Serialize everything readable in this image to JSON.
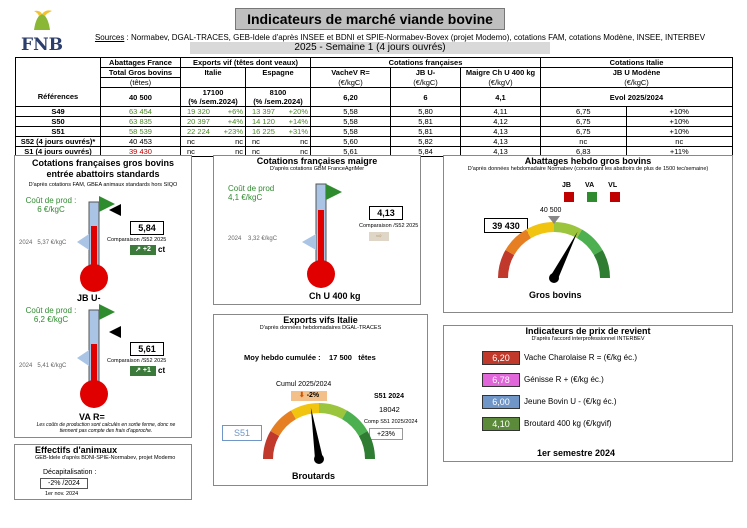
{
  "logo": {
    "text": "FNB"
  },
  "header": {
    "title": "Indicateurs de marché viande bovine",
    "sources_label": "Sources",
    "sources_text": " : Normabev, DGAL-TRACES, GEB-Idele d'après INSEE et BDNI et SPIE-Normabev-Bovex (projet Modemo), cotations FAM, cotations Modène, INSEE, INTERBEV",
    "week": "2025 - Semaine 1 (4 jours ouvrés)"
  },
  "table": {
    "h1": [
      "Abattages France",
      "Exports vif (têtes dont veaux)",
      "Cotations françaises",
      "Cotations Italie"
    ],
    "h2": [
      "Total Gros bovins",
      "Italie",
      "Espagne",
      "VacheV R=",
      "JB U-",
      "Maigre Ch U 400 kg",
      "JB U Modène"
    ],
    "h3": [
      "(têtes)",
      "(€/kgC)",
      "(€/kgC)",
      "(€/kgV)",
      "(€/kgC)"
    ],
    "ref_label": "Références",
    "ref": [
      "40 500",
      "17100",
      "(% /sem.2024)",
      "8100",
      "(% /sem.2024)",
      "6,20",
      "6",
      "4,1",
      "Evol 2025/2024"
    ],
    "rows": [
      {
        "label": "S49",
        "ab": "63 454",
        "it": "19 320",
        "itp": "+6%",
        "es": "13 397",
        "esp": "+20%",
        "vache": "5,58",
        "jb": "5,80",
        "maigre": "4,11",
        "mod": "6,75",
        "modp": "+10%"
      },
      {
        "label": "S50",
        "ab": "63 835",
        "it": "20 397",
        "itp": "+4%",
        "es": "14 120",
        "esp": "+14%",
        "vache": "5,58",
        "jb": "5,81",
        "maigre": "4,12",
        "mod": "6,75",
        "modp": "+10%"
      },
      {
        "label": "S51",
        "ab": "58 539",
        "it": "22 224",
        "itp": "+23%",
        "es": "16 225",
        "esp": "+31%",
        "vache": "5,58",
        "jb": "5,81",
        "maigre": "4,13",
        "mod": "6,75",
        "modp": "+10%"
      },
      {
        "label": "S52 (4 jours ouvrés)*",
        "ab": "40 453",
        "it": "nc",
        "itp": "nc",
        "es": "nc",
        "esp": "nc",
        "vache": "5,60",
        "jb": "5,82",
        "maigre": "4,13",
        "mod": "nc",
        "modp": "nc"
      },
      {
        "label": "S1 (4 jours ouvrés)",
        "ab": "39 430",
        "it": "nc",
        "itp": "nc",
        "es": "nc",
        "esp": "nc",
        "vache": "5,61",
        "jb": "5,84",
        "maigre": "4,13",
        "mod": "6,83",
        "modp": "+11%"
      }
    ]
  },
  "p1": {
    "title": "Cotations françaises gros bovins entrée abattoirs standards",
    "note": "D'après cotations FAM, GBEA animaux standards hors SIQO",
    "jb": {
      "cout_label": "Coût de prod :",
      "cout_val": "6 €/kgC",
      "y2024": "2024",
      "v2024": "5,37 €/kgC",
      "value": "5,84",
      "comp": "Comparaison /S52 2025",
      "delta": "+2",
      "unit": "ct",
      "name": "JB U-"
    },
    "va": {
      "cout_label": "Coût de prod :",
      "cout_val": "6,2 €/kgC",
      "y2024": "2024",
      "v2024": "5,41 €/kgC",
      "value": "5,61",
      "comp": "Comparaison /S52 2025",
      "delta": "+1",
      "unit": "ct",
      "name": "VA R="
    },
    "foot": "Les coûts de production sont calculés en sortie ferme, donc ne tiennent pas compte des frais d'approche."
  },
  "p2": {
    "title": "Cotations françaises maigre",
    "note": "D'après cotations GBM FranceAgriMer",
    "cout_label": "Coût de prod",
    "cout_val": "4,1 €/kgC",
    "y2024": "2024",
    "v2024": "3,32 €/kgC",
    "value": "4,13",
    "comp": "Comparaison /S52 2025",
    "name": "Ch U 400 kg"
  },
  "p3": {
    "title": "Abattages hebdo gros bovins",
    "note": "D'après données hebdomadaire Normabev (concernant les abattoirs de plus de 1500 tec/semaine)",
    "legend": [
      "JB",
      "VA",
      "VL"
    ],
    "ref": "40 500",
    "value": "39 430",
    "name": "Gros bovins",
    "gauge_ratio": 0.65
  },
  "p4": {
    "title": "Exports vifs Italie",
    "note": "D'après données hebdomadaires DGAL-TRACES",
    "moy_label": "Moy hebdo cumulée :",
    "moy_val": "17 500",
    "moy_unit": "têtes",
    "cumul_label": "Cumul 2025/2024",
    "cumul_val": "-2%",
    "week": "S51",
    "s51_label": "S51 2024",
    "s51_val": "18042",
    "comp_label": "Comp S51 2025/2024",
    "comp_val": "+23%",
    "name": "Broutards",
    "gauge_ratio": 0.45
  },
  "p5": {
    "title": "Indicateurs de prix de revient",
    "note": "D'après l'accord interprofessionnel INTERBEV",
    "items": [
      {
        "value": "6,20",
        "label": "Vache Charolaise R = (€/kg éc.)",
        "color": "#c0392b"
      },
      {
        "value": "6,78",
        "label": "Génisse R + (€/kg éc.)",
        "color": "#e066d9"
      },
      {
        "value": "6,00",
        "label": "Jeune Bovin U - (€/kg éc.)",
        "color": "#6f96c6"
      },
      {
        "value": "4,10",
        "label": "Broutard 400 kg (€/kgvif)",
        "color": "#5a8a3a"
      }
    ],
    "period": "1er semestre 2024"
  },
  "p6": {
    "title": "Effectifs d'animaux",
    "note": "GEB-Idele d'après BDNI-SPIE-Normabev, projet Modemo",
    "dec_label": "Décapitalisation :",
    "dec_val": "-2% /2024",
    "date": "1er nov. 2024"
  }
}
